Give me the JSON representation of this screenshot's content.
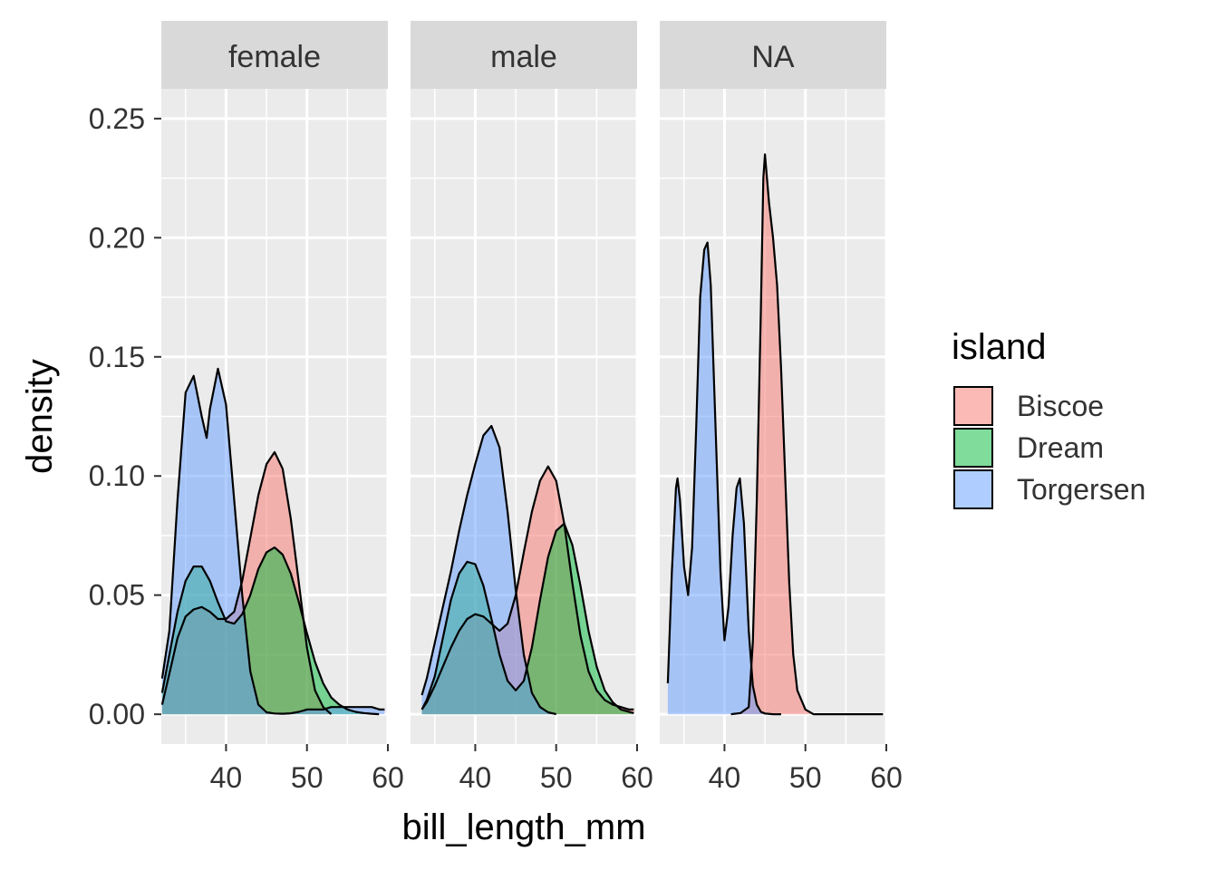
{
  "chart_data": {
    "type": "area",
    "subtype": "faceted density",
    "xlabel": "bill_length_mm",
    "ylabel": "density",
    "xlim": [
      32,
      60
    ],
    "ylim": [
      -0.0125,
      0.2625
    ],
    "x_ticks": [
      40,
      50,
      60
    ],
    "y_ticks": [
      0,
      0.05,
      0.1,
      0.15,
      0.2,
      0.25
    ],
    "y_tick_labels": [
      "0.00",
      "0.05",
      "0.10",
      "0.15",
      "0.20",
      "0.25"
    ],
    "x_tick_labels": [
      "40",
      "50",
      "60"
    ],
    "grid": true,
    "legend": {
      "title": "island",
      "position": "right",
      "entries": [
        {
          "label": "Biscoe",
          "color": "#F8766D"
        },
        {
          "label": "Dream",
          "color": "#00BA38"
        },
        {
          "label": "Torgersen",
          "color": "#619CFF"
        }
      ]
    },
    "fill_alpha": 0.5,
    "panel_background": "#EBEBEB",
    "strip_background": "#D9D9D9",
    "facets": [
      {
        "label": "female",
        "series": [
          {
            "name": "Biscoe",
            "x": [
              32.1,
              33,
              34,
              35,
              36,
              37,
              38,
              39,
              40,
              41,
              42,
              43,
              44,
              45,
              46,
              47,
              48,
              49,
              50,
              51,
              52,
              53
            ],
            "y": [
              0.004,
              0.017,
              0.032,
              0.041,
              0.044,
              0.045,
              0.043,
              0.04,
              0.04,
              0.043,
              0.056,
              0.074,
              0.092,
              0.105,
              0.11,
              0.103,
              0.082,
              0.055,
              0.028,
              0.01,
              0.003,
              0.0
            ]
          },
          {
            "name": "Dream",
            "x": [
              32.1,
              33,
              34,
              35,
              36,
              37,
              38,
              39,
              40,
              41,
              42,
              43,
              44,
              45,
              46,
              47,
              48,
              49,
              50,
              51,
              52,
              53,
              54,
              55,
              56,
              57,
              58,
              58.9
            ],
            "y": [
              0.009,
              0.025,
              0.043,
              0.056,
              0.062,
              0.062,
              0.056,
              0.047,
              0.039,
              0.038,
              0.042,
              0.05,
              0.061,
              0.068,
              0.07,
              0.067,
              0.059,
              0.047,
              0.034,
              0.022,
              0.013,
              0.007,
              0.004,
              0.002,
              0.001,
              0.0005,
              0.0002,
              0.0
            ]
          },
          {
            "name": "Torgersen",
            "x": [
              32.1,
              33,
              34,
              35,
              36,
              37,
              37.6,
              38,
              39,
              40,
              41,
              42,
              43,
              44,
              45,
              46,
              47,
              48,
              49,
              50,
              51,
              52,
              53,
              54,
              55,
              56,
              57,
              58,
              59,
              59.6
            ],
            "y": [
              0.015,
              0.035,
              0.09,
              0.135,
              0.142,
              0.125,
              0.116,
              0.128,
              0.145,
              0.13,
              0.09,
              0.05,
              0.018,
              0.004,
              0.0008,
              0.0003,
              0.0002,
              0.0004,
              0.001,
              0.002,
              0.002,
              0.002,
              0.003,
              0.003,
              0.003,
              0.003,
              0.003,
              0.003,
              0.002,
              0.002
            ]
          }
        ]
      },
      {
        "label": "male",
        "series": [
          {
            "name": "Biscoe",
            "x": [
              33.4,
              34,
              35,
              36,
              37,
              38,
              39,
              40,
              41,
              42,
              43,
              44,
              45,
              46,
              47,
              48,
              49,
              50,
              51,
              52,
              53,
              54,
              55,
              56,
              57,
              58,
              59,
              59.6
            ],
            "y": [
              0.002,
              0.005,
              0.012,
              0.02,
              0.028,
              0.035,
              0.04,
              0.042,
              0.041,
              0.038,
              0.035,
              0.038,
              0.05,
              0.068,
              0.085,
              0.098,
              0.104,
              0.098,
              0.08,
              0.055,
              0.033,
              0.018,
              0.01,
              0.006,
              0.004,
              0.003,
              0.002,
              0.002
            ]
          },
          {
            "name": "Dream",
            "x": [
              33.4,
              34,
              35,
              36,
              37,
              38,
              39,
              40,
              41,
              42,
              43,
              44,
              45,
              46,
              47,
              48,
              49,
              50,
              51,
              52,
              53,
              54,
              55,
              56,
              57,
              58,
              59,
              59.6
            ],
            "y": [
              0.002,
              0.006,
              0.016,
              0.032,
              0.048,
              0.059,
              0.064,
              0.063,
              0.054,
              0.04,
              0.025,
              0.014,
              0.01,
              0.014,
              0.028,
              0.048,
              0.066,
              0.077,
              0.08,
              0.071,
              0.054,
              0.035,
              0.02,
              0.01,
              0.005,
              0.002,
              0.001,
              0.0005
            ]
          },
          {
            "name": "Torgersen",
            "x": [
              33.4,
              34,
              35,
              36,
              37,
              38,
              39,
              40,
              41,
              42,
              43,
              44,
              45,
              46,
              47,
              48,
              49,
              50
            ],
            "y": [
              0.008,
              0.015,
              0.03,
              0.045,
              0.06,
              0.077,
              0.092,
              0.105,
              0.117,
              0.121,
              0.112,
              0.085,
              0.052,
              0.025,
              0.009,
              0.003,
              0.0008,
              0.0
            ]
          }
        ]
      },
      {
        "label": "NA",
        "series": [
          {
            "name": "Biscoe",
            "x": [
              40.8,
              42,
              43,
              43.5,
              44,
              44.5,
              44.8,
              45,
              45.5,
              46,
              46.5,
              47,
              47.5,
              48,
              48.5,
              49,
              50,
              51,
              55,
              59.6
            ],
            "y": [
              0.0,
              0.0005,
              0.003,
              0.03,
              0.09,
              0.17,
              0.225,
              0.235,
              0.215,
              0.2,
              0.18,
              0.145,
              0.1,
              0.055,
              0.025,
              0.01,
              0.002,
              0.0,
              0.0,
              0.0
            ]
          },
          {
            "name": "Torgersen",
            "x": [
              33,
              33.5,
              34,
              34.2,
              34.5,
              35,
              35.5,
              36,
              36.5,
              37,
              37.5,
              37.9,
              38.3,
              39,
              39.5,
              40,
              40.5,
              41,
              41.5,
              41.9,
              42.4,
              43,
              43.5,
              44,
              44.5,
              45,
              46,
              47
            ],
            "y": [
              0.013,
              0.06,
              0.095,
              0.099,
              0.09,
              0.062,
              0.05,
              0.07,
              0.12,
              0.175,
              0.195,
              0.198,
              0.18,
              0.11,
              0.06,
              0.031,
              0.045,
              0.075,
              0.095,
              0.099,
              0.08,
              0.035,
              0.012,
              0.004,
              0.001,
              0.0003,
              0.0,
              0.0
            ]
          }
        ]
      }
    ]
  }
}
